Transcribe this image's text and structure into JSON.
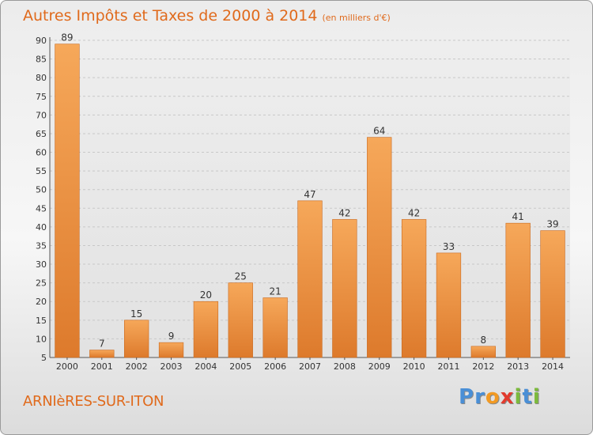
{
  "title": "Autres Impôts et Taxes de 2000 à 2014",
  "subtitle": "(en milliers d'€)",
  "commune": "ARNIèRES-SUR-ITON",
  "logo": {
    "text": "Proxiti",
    "letters": [
      "P",
      "r",
      "o",
      "x",
      "i",
      "t",
      "i"
    ],
    "colors": [
      "#4a8fd6",
      "#4a8fd6",
      "#f29a23",
      "#e23b2e",
      "#7cba3c",
      "#4a8fd6",
      "#7cba3c"
    ]
  },
  "colors": {
    "bar_light": "#f6a85a",
    "bar_dark": "#dd7a2c",
    "accent": "#e06a1c"
  },
  "chart_data": {
    "type": "bar",
    "categories": [
      "2000",
      "2001",
      "2002",
      "2003",
      "2004",
      "2005",
      "2006",
      "2007",
      "2008",
      "2009",
      "2010",
      "2011",
      "2012",
      "2013",
      "2014"
    ],
    "values": [
      89,
      7,
      15,
      9,
      20,
      25,
      21,
      47,
      42,
      64,
      42,
      33,
      8,
      41,
      39
    ],
    "ylim": [
      5,
      90
    ],
    "yticks": [
      5,
      10,
      15,
      20,
      25,
      30,
      35,
      40,
      45,
      50,
      55,
      60,
      65,
      70,
      75,
      80,
      85,
      90
    ],
    "grid": true,
    "data_labels": true
  }
}
